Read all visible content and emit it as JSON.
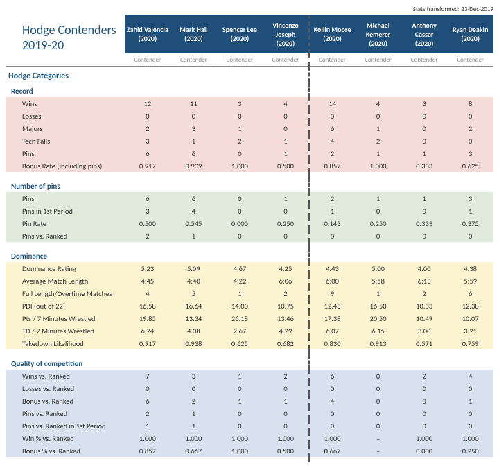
{
  "timestamp": "Stats transformed: 23-Dec-2019",
  "title": "Hodge Contenders 2019-20",
  "wrestlers": [
    {
      "name": "Zahid Valencia",
      "year": "(2020)",
      "status": "Contender"
    },
    {
      "name": "Mark Hall",
      "year": "(2020)",
      "status": "Contender"
    },
    {
      "name": "Spencer Lee",
      "year": "(2020)",
      "status": "Contender"
    },
    {
      "name": "Vincenzo Joseph",
      "year": "(2020)",
      "status": "Contender"
    },
    {
      "name": "Kollin Moore",
      "year": "(2020)",
      "status": "Contender"
    },
    {
      "name": "Michael Kemerer",
      "year": "(2020)",
      "status": "Contender"
    },
    {
      "name": "Anthony Cassar",
      "year": "(2020)",
      "status": "Contender"
    },
    {
      "name": "Ryan Deakin",
      "year": "(2020)",
      "status": "Contender"
    }
  ],
  "divider_after_index": 3,
  "super_section": "Hodge Categories",
  "sections": [
    {
      "name": "Record",
      "bg": "bg-red",
      "rows": [
        {
          "label": "Wins",
          "v": [
            "12",
            "11",
            "3",
            "4",
            "14",
            "4",
            "3",
            "8"
          ]
        },
        {
          "label": "Losses",
          "v": [
            "0",
            "0",
            "0",
            "0",
            "0",
            "0",
            "0",
            "0"
          ]
        },
        {
          "label": "Majors",
          "v": [
            "2",
            "3",
            "1",
            "0",
            "6",
            "1",
            "0",
            "2"
          ]
        },
        {
          "label": "Tech Falls",
          "v": [
            "3",
            "1",
            "2",
            "1",
            "4",
            "2",
            "0",
            "0"
          ]
        },
        {
          "label": "Pins",
          "v": [
            "6",
            "6",
            "0",
            "1",
            "2",
            "1",
            "1",
            "3"
          ]
        },
        {
          "label": "Bonus Rate (including pins)",
          "v": [
            "0.917",
            "0.909",
            "1.000",
            "0.500",
            "0.857",
            "1.000",
            "0.333",
            "0.625"
          ]
        }
      ]
    },
    {
      "name": "Number of pins",
      "bg": "bg-green",
      "rows": [
        {
          "label": "Pins",
          "v": [
            "6",
            "6",
            "0",
            "1",
            "2",
            "1",
            "1",
            "3"
          ]
        },
        {
          "label": "Pins in 1st Period",
          "v": [
            "3",
            "4",
            "0",
            "0",
            "1",
            "0",
            "0",
            "1"
          ]
        },
        {
          "label": "Pin Rate",
          "v": [
            "0.500",
            "0.545",
            "0.000",
            "0.250",
            "0.143",
            "0.250",
            "0.333",
            "0.375"
          ]
        },
        {
          "label": "Pins vs. Ranked",
          "v": [
            "2",
            "1",
            "0",
            "0",
            "0",
            "0",
            "0",
            "0"
          ]
        }
      ]
    },
    {
      "name": "Dominance",
      "bg": "bg-yellow",
      "rows": [
        {
          "label": "Dominance Rating",
          "v": [
            "5.23",
            "5.09",
            "4.67",
            "4.25",
            "4.43",
            "5.00",
            "4.00",
            "4.38"
          ]
        },
        {
          "label": "Average Match Length",
          "v": [
            "4:45",
            "4:40",
            "4:22",
            "6:06",
            "6:00",
            "5:58",
            "6:13",
            "5:59"
          ]
        },
        {
          "label": "Full Length/Overtime Matches",
          "v": [
            "4",
            "5",
            "1",
            "2",
            "9",
            "1",
            "2",
            "6"
          ]
        },
        {
          "label": "PDI (out of 22)",
          "v": [
            "16.58",
            "16.64",
            "14.00",
            "10.75",
            "12.43",
            "16.50",
            "10.33",
            "12.38"
          ]
        },
        {
          "label": "Pts / 7 Minutes Wrestled",
          "v": [
            "19.85",
            "13.34",
            "26.18",
            "13.46",
            "17.38",
            "20.50",
            "10.49",
            "10.07"
          ]
        },
        {
          "label": "TD / 7 Minutes Wrestled",
          "v": [
            "6.74",
            "4.08",
            "2.67",
            "4.29",
            "6.07",
            "6.15",
            "3.00",
            "3.21"
          ]
        },
        {
          "label": "Takedown Likelihood",
          "v": [
            "0.917",
            "0.938",
            "0.625",
            "0.682",
            "0.830",
            "0.913",
            "0.571",
            "0.759"
          ]
        }
      ]
    },
    {
      "name": "Quality of competition",
      "bg": "bg-blue",
      "rows": [
        {
          "label": "Wins vs. Ranked",
          "v": [
            "7",
            "3",
            "1",
            "2",
            "6",
            "0",
            "2",
            "4"
          ]
        },
        {
          "label": "Losses vs. Ranked",
          "v": [
            "0",
            "0",
            "0",
            "0",
            "0",
            "0",
            "0",
            "0"
          ]
        },
        {
          "label": "Bonus vs. Ranked",
          "v": [
            "6",
            "2",
            "1",
            "1",
            "4",
            "0",
            "0",
            "1"
          ]
        },
        {
          "label": "Pins vs. Ranked",
          "v": [
            "2",
            "1",
            "0",
            "0",
            "0",
            "0",
            "0",
            "0"
          ]
        },
        {
          "label": "Pins vs. Ranked in 1st Period",
          "v": [
            "1",
            "1",
            "0",
            "0",
            "0",
            "0",
            "0",
            "0"
          ]
        },
        {
          "label": "Win % vs. Ranked",
          "v": [
            "1.000",
            "1.000",
            "1.000",
            "1.000",
            "1.000",
            "–",
            "1.000",
            "1.000"
          ]
        },
        {
          "label": "Bonus % vs. Ranked",
          "v": [
            "0.857",
            "0.667",
            "1.000",
            "0.500",
            "0.667",
            "–",
            "0.000",
            "0.250"
          ]
        }
      ]
    }
  ]
}
